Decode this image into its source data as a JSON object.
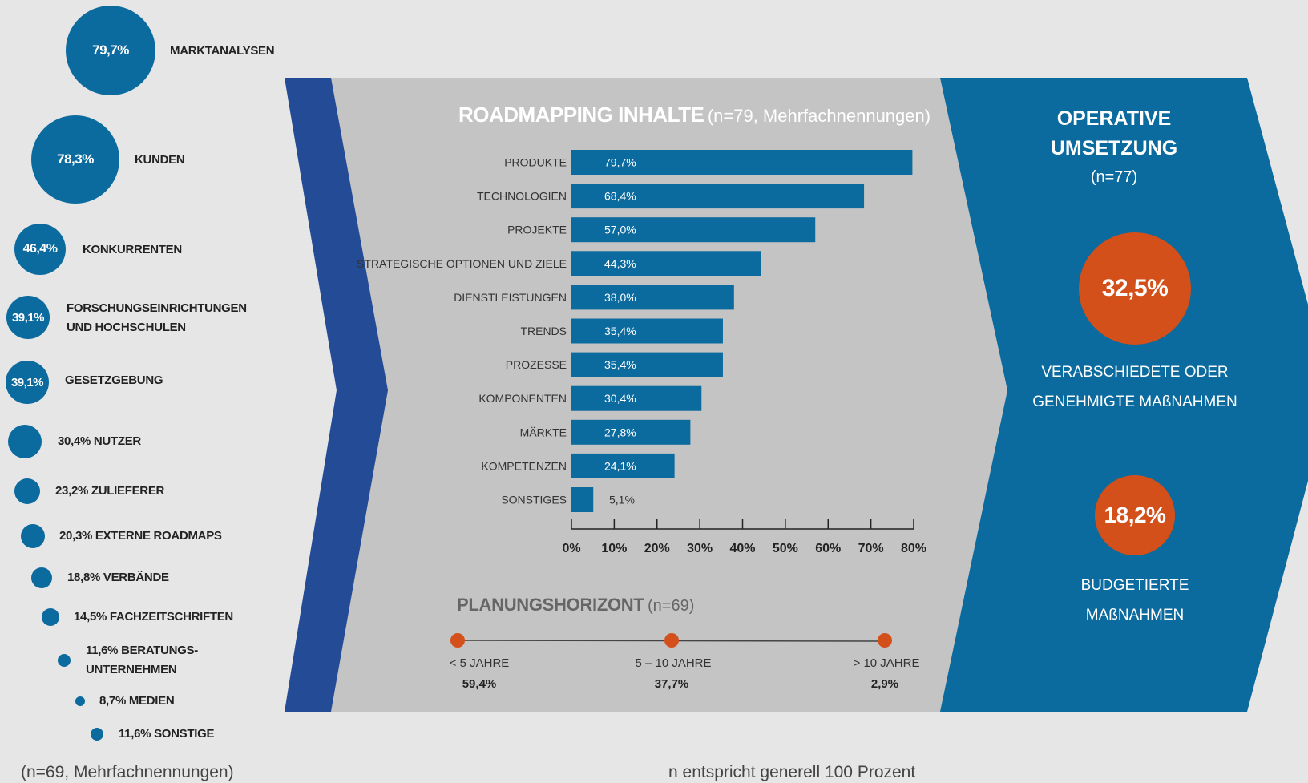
{
  "sources": {
    "footnote": "(n=69, Mehrfachnennungen)",
    "items": [
      {
        "value": "79,7%",
        "label": "MARKTANALYSEN"
      },
      {
        "value": "78,3%",
        "label": "KUNDEN"
      },
      {
        "value": "46,4%",
        "label": "KONKURRENTEN"
      },
      {
        "value": "39,1%",
        "label": "FORSCHUNGSEINRICHTUNGEN\nUND HOCHSCHULEN"
      },
      {
        "value": "39,1%",
        "label": "GESETZGEBUNG"
      },
      {
        "value": "30,4%",
        "label": "NUTZER"
      },
      {
        "value": "23,2%",
        "label": "ZULIEFERER"
      },
      {
        "value": "20,3%",
        "label": "EXTERNE ROADMAPS"
      },
      {
        "value": "18,8%",
        "label": "VERBÄNDE"
      },
      {
        "value": "14,5%",
        "label": "FACHZEITSCHRIFTEN"
      },
      {
        "value": "11,6%",
        "label": "BERATUNGS-\nUNTERNEHMEN"
      },
      {
        "value": "8,7%",
        "label": "MEDIEN"
      },
      {
        "value": "11,6%",
        "label": "SONSTIGE"
      }
    ]
  },
  "roadmap": {
    "title": "ROADMAPPING INHALTE",
    "title_note": "(n=79, Mehrfachnennungen)"
  },
  "planning": {
    "title": "PLANUNGSHORIZONT",
    "title_note": "(n=69)",
    "points": [
      {
        "label": "< 5 JAHRE",
        "value": "59,4%"
      },
      {
        "label": "5 – 10 JAHRE",
        "value": "37,7%"
      },
      {
        "label": "> 10 JAHRE",
        "value": "2,9%"
      }
    ]
  },
  "operative": {
    "title_line1": "OPERATIVE",
    "title_line2": "UMSETZUNG",
    "n": "(n=77)",
    "stats": [
      {
        "value": "32,5%",
        "line1": "VERABSCHIEDETE ODER",
        "line2": "GENEHMIGTE MAßNAHMEN"
      },
      {
        "value": "18,2%",
        "line1": "BUDGETIERTE",
        "line2": "MAßNAHMEN"
      }
    ]
  },
  "footer_note": "n entspricht generell 100 Prozent",
  "colors": {
    "blue": "#0b6a9e",
    "dark_blue": "#244b96",
    "orange": "#d4501b",
    "panel_gray": "#c4c4c4",
    "bg": "#e6e6e6"
  },
  "chart_data": {
    "type": "bar",
    "orientation": "horizontal",
    "title": "ROADMAPPING INHALTE",
    "categories": [
      "PRODUKTE",
      "TECHNOLOGIEN",
      "PROJEKTE",
      "STRATEGISCHE OPTIONEN UND ZIELE",
      "DIENSTLEISTUNGEN",
      "TRENDS",
      "PROZESSE",
      "KOMPONENTEN",
      "MÄRKTE",
      "KOMPETENZEN",
      "SONSTIGES"
    ],
    "values": [
      79.7,
      68.4,
      57.0,
      44.3,
      38.0,
      35.4,
      35.4,
      30.4,
      27.8,
      24.1,
      5.1
    ],
    "value_labels": [
      "79,7%",
      "68,4%",
      "57,0%",
      "44,3%",
      "38,0%",
      "35,4%",
      "35,4%",
      "30,4%",
      "27,8%",
      "24,1%",
      "5,1%"
    ],
    "xlim": [
      0,
      80
    ],
    "ticks": [
      "0%",
      "10%",
      "20%",
      "30%",
      "40%",
      "50%",
      "60%",
      "70%",
      "80%"
    ],
    "grid": false
  }
}
